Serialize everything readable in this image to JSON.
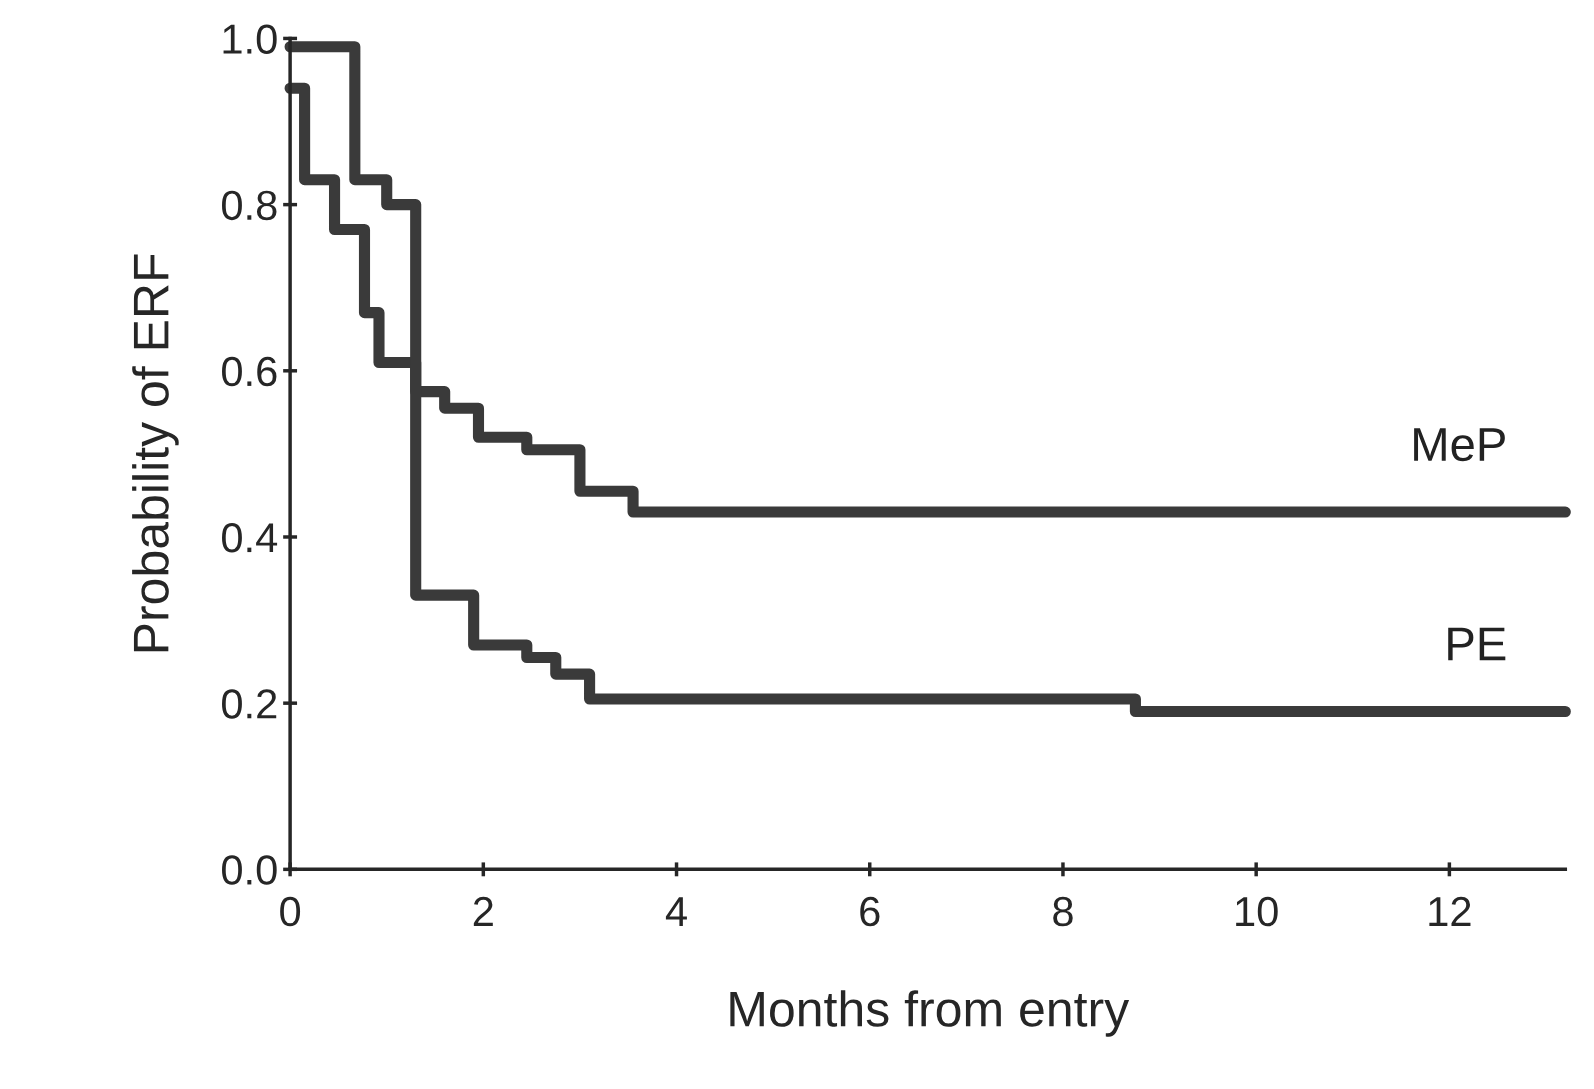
{
  "chart_data": {
    "type": "step",
    "xlabel": "Months from entry",
    "ylabel": "Probability of ERF",
    "xlim": [
      0,
      13.2
    ],
    "ylim": [
      0,
      1.0
    ],
    "xticks": [
      0,
      2,
      4,
      6,
      8,
      10,
      12
    ],
    "yticks": [
      {
        "value": 0,
        "label": "0.0"
      },
      {
        "value": 0.2,
        "label": "0.2"
      },
      {
        "value": 0.4,
        "label": "0.4"
      },
      {
        "value": 0.6,
        "label": "0.6"
      },
      {
        "value": 0.8,
        "label": "0.8"
      },
      {
        "value": 1.0,
        "label": "1.0"
      }
    ],
    "grid": false,
    "legend": false,
    "series": [
      {
        "name": "MeP",
        "color": "#3a3a3a",
        "x": [
          0,
          0.15,
          0.46,
          0.77,
          0.92,
          1.3,
          1.6,
          1.95,
          2.45,
          3.0,
          3.55,
          13.2
        ],
        "values": [
          0.94,
          0.83,
          0.77,
          0.67,
          0.61,
          0.575,
          0.555,
          0.52,
          0.505,
          0.455,
          0.43,
          0.43
        ]
      },
      {
        "name": "PE",
        "color": "#3a3a3a",
        "x": [
          0,
          0.67,
          1.0,
          1.3,
          1.9,
          2.45,
          2.75,
          3.1,
          8.75,
          13.2
        ],
        "values": [
          0.99,
          0.83,
          0.8,
          0.33,
          0.27,
          0.255,
          0.235,
          0.205,
          0.19,
          0.19
        ]
      }
    ]
  }
}
